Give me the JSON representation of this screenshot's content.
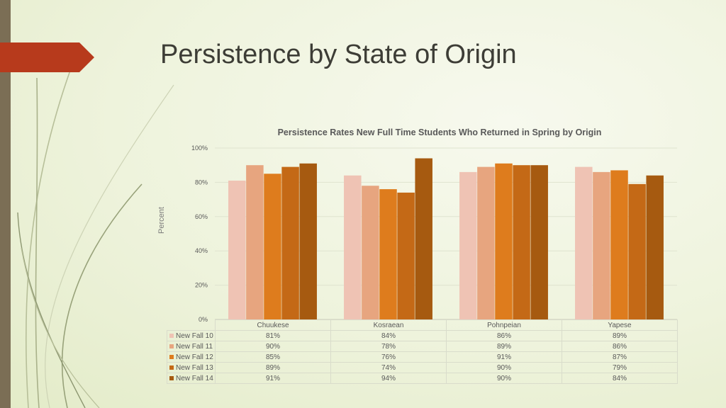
{
  "slide": {
    "title": "Persistence by State of Origin"
  },
  "chart_data": {
    "type": "bar",
    "title": "Persistence Rates New Full Time Students Who Returned in Spring by Origin",
    "xlabel": "",
    "ylabel": "Percent",
    "ylim": [
      0,
      100
    ],
    "yticks": [
      0,
      20,
      40,
      60,
      80,
      100
    ],
    "ytick_labels": [
      "0%",
      "20%",
      "40%",
      "60%",
      "80%",
      "100%"
    ],
    "grid": true,
    "legend": "data-table-below",
    "categories": [
      "Chuukese",
      "Kosraean",
      "Pohnpeian",
      "Yapese"
    ],
    "series": [
      {
        "name": "New Fall 10",
        "color": "#efc3b4",
        "values": [
          81,
          84,
          86,
          89
        ],
        "labels": [
          "81%",
          "84%",
          "86%",
          "89%"
        ]
      },
      {
        "name": "New Fall 11",
        "color": "#e7a57f",
        "values": [
          90,
          78,
          89,
          86
        ],
        "labels": [
          "90%",
          "78%",
          "89%",
          "86%"
        ]
      },
      {
        "name": "New Fall 12",
        "color": "#de7c1d",
        "values": [
          85,
          76,
          91,
          87
        ],
        "labels": [
          "85%",
          "76%",
          "91%",
          "87%"
        ]
      },
      {
        "name": "New Fall 13",
        "color": "#c46916",
        "values": [
          89,
          74,
          90,
          79
        ],
        "labels": [
          "89%",
          "74%",
          "90%",
          "79%"
        ]
      },
      {
        "name": "New Fall 14",
        "color": "#a65a10",
        "values": [
          91,
          94,
          90,
          84
        ],
        "labels": [
          "91%",
          "94%",
          "90%",
          "84%"
        ]
      }
    ]
  }
}
